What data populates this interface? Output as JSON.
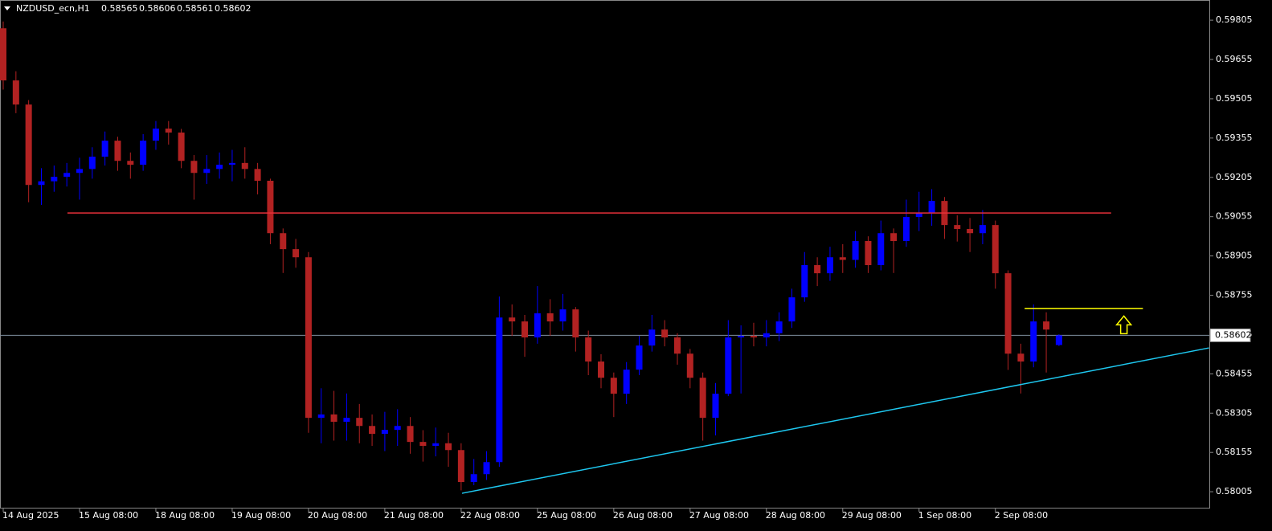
{
  "chart_data": {
    "type": "candlestick",
    "symbol": "NZDUSD_ecn,H1",
    "up_color": "#0000ff",
    "down_color": "#b22222",
    "categories": [
      "14 Aug 2025",
      null,
      null,
      null,
      null,
      null,
      "15 Aug 08:00",
      null,
      null,
      null,
      null,
      null,
      "18 Aug 08:00",
      null,
      null,
      null,
      null,
      null,
      "19 Aug 08:00",
      null,
      null,
      null,
      null,
      null,
      "20 Aug 08:00",
      null,
      null,
      null,
      null,
      null,
      "21 Aug 08:00",
      null,
      null,
      null,
      null,
      null,
      "22 Aug 08:00",
      null,
      null,
      null,
      null,
      null,
      "25 Aug 08:00",
      null,
      null,
      null,
      null,
      null,
      "26 Aug 08:00",
      null,
      null,
      null,
      null,
      null,
      "27 Aug 08:00",
      null,
      null,
      null,
      null,
      null,
      "28 Aug 08:00",
      null,
      null,
      null,
      null,
      null,
      "29 Aug 08:00",
      null,
      null,
      null,
      null,
      null,
      "1 Sep 08:00",
      null,
      null,
      null,
      null,
      null,
      "2 Sep 08:00",
      null,
      null,
      null,
      null,
      null
    ],
    "open": [
      0.59774,
      0.59575,
      0.59483,
      0.59176,
      0.5919,
      0.59207,
      0.59222,
      0.59237,
      0.59284,
      0.59345,
      0.59268,
      0.59253,
      0.59345,
      0.59391,
      0.59376,
      0.59268,
      0.59222,
      0.59237,
      0.59253,
      0.5926,
      0.59237,
      0.59192,
      0.58992,
      0.58931,
      0.589,
      0.58287,
      0.583,
      0.58272,
      0.58287,
      0.58256,
      0.58226,
      0.58241,
      0.58256,
      0.58195,
      0.5818,
      0.5819,
      0.58164,
      0.58042,
      0.58072,
      0.58118,
      0.5867,
      0.58655,
      0.58594,
      0.58686,
      0.58655,
      0.58701,
      0.58594,
      0.58502,
      0.5844,
      0.58379,
      0.58471,
      0.58563,
      0.58624,
      0.58594,
      0.58532,
      0.5844,
      0.58287,
      0.58379,
      0.58594,
      0.586,
      0.58594,
      0.5861,
      0.58655,
      0.58747,
      0.5887,
      0.58839,
      0.589,
      0.5889,
      0.58962,
      0.5887,
      0.58992,
      0.58962,
      0.59054,
      0.59069,
      0.59115,
      0.59023,
      0.59008,
      0.58992,
      0.59023,
      0.58839,
      0.58532,
      0.58502,
      0.58655,
      0.58565
    ],
    "high": [
      0.598,
      0.5961,
      0.595,
      0.5924,
      0.5925,
      0.5926,
      0.5928,
      0.5932,
      0.5938,
      0.5936,
      0.593,
      0.5937,
      0.5942,
      0.5942,
      0.5939,
      0.5929,
      0.5929,
      0.593,
      0.5931,
      0.5932,
      0.5926,
      0.592,
      0.5901,
      0.5897,
      0.5892,
      0.584,
      0.5839,
      0.5838,
      0.5834,
      0.583,
      0.5831,
      0.5832,
      0.5829,
      0.5824,
      0.5825,
      0.5823,
      0.5819,
      0.5813,
      0.5816,
      0.5875,
      0.5872,
      0.5868,
      0.5879,
      0.5874,
      0.5876,
      0.5871,
      0.5862,
      0.5853,
      0.5846,
      0.585,
      0.586,
      0.5868,
      0.5866,
      0.5861,
      0.5855,
      0.5846,
      0.5842,
      0.5866,
      0.5864,
      0.5865,
      0.5866,
      0.5869,
      0.5878,
      0.5892,
      0.589,
      0.5894,
      0.5895,
      0.59,
      0.5898,
      0.5904,
      0.5901,
      0.5912,
      0.5915,
      0.5916,
      0.5913,
      0.5906,
      0.5905,
      0.5908,
      0.5904,
      0.5885,
      0.5857,
      0.5872,
      0.5869,
      0.58606
    ],
    "low": [
      0.5954,
      0.5945,
      0.5911,
      0.591,
      0.5915,
      0.5917,
      0.5912,
      0.592,
      0.5925,
      0.5923,
      0.592,
      0.5923,
      0.5931,
      0.5933,
      0.5924,
      0.5912,
      0.5918,
      0.592,
      0.5919,
      0.592,
      0.5914,
      0.5895,
      0.5884,
      0.5886,
      0.5823,
      0.5819,
      0.582,
      0.582,
      0.5819,
      0.5818,
      0.5816,
      0.5818,
      0.5815,
      0.5812,
      0.5814,
      0.581,
      0.5801,
      0.5803,
      0.5805,
      0.581,
      0.586,
      0.5852,
      0.5857,
      0.586,
      0.5862,
      0.5854,
      0.5845,
      0.584,
      0.5829,
      0.5834,
      0.5845,
      0.5854,
      0.5856,
      0.5849,
      0.584,
      0.582,
      0.5822,
      0.5837,
      0.5838,
      0.5856,
      0.5856,
      0.5858,
      0.5863,
      0.5873,
      0.5879,
      0.5881,
      0.5884,
      0.5886,
      0.5884,
      0.5885,
      0.5884,
      0.5894,
      0.59,
      0.5902,
      0.5897,
      0.5896,
      0.5892,
      0.5895,
      0.5878,
      0.5847,
      0.5838,
      0.5848,
      0.5846,
      0.58561
    ],
    "close": [
      0.59575,
      0.59483,
      0.59176,
      0.5919,
      0.59207,
      0.59222,
      0.59237,
      0.59284,
      0.59345,
      0.59268,
      0.59253,
      0.59345,
      0.59391,
      0.59376,
      0.59268,
      0.59222,
      0.59237,
      0.59253,
      0.5926,
      0.59237,
      0.59192,
      0.58992,
      0.58931,
      0.589,
      0.58287,
      0.583,
      0.58272,
      0.58287,
      0.58256,
      0.58226,
      0.58241,
      0.58256,
      0.58195,
      0.5818,
      0.5819,
      0.58164,
      0.58042,
      0.58072,
      0.58118,
      0.5867,
      0.58655,
      0.58594,
      0.58686,
      0.58655,
      0.58701,
      0.58594,
      0.58502,
      0.5844,
      0.58379,
      0.58471,
      0.58563,
      0.58624,
      0.58594,
      0.58532,
      0.5844,
      0.58287,
      0.58379,
      0.58594,
      0.586,
      0.58594,
      0.5861,
      0.58655,
      0.58747,
      0.5887,
      0.58839,
      0.589,
      0.5889,
      0.58962,
      0.5887,
      0.58992,
      0.58962,
      0.59054,
      0.59069,
      0.59115,
      0.59023,
      0.59008,
      0.58992,
      0.59023,
      0.58839,
      0.58532,
      0.58502,
      0.58655,
      0.58624,
      0.58602
    ],
    "ylim": [
      0.57944,
      0.59882
    ],
    "yticks": [
      0.59805,
      0.59655,
      0.59505,
      0.59355,
      0.59205,
      0.59055,
      0.58905,
      0.58755,
      0.58605,
      0.58455,
      0.58305,
      0.58155,
      0.58005
    ],
    "price_line_color": "#8090a0",
    "lines": [
      {
        "color": "#e8303a",
        "x": [
          5.05,
          87.1
        ],
        "y": [
          0.59069,
          0.59069
        ]
      },
      {
        "color": "#ffff00",
        "x": [
          80.3,
          89.6
        ],
        "y": [
          0.58704,
          0.58704
        ]
      },
      {
        "color": "#1ec8f0",
        "x": [
          36.07,
          94.8
        ],
        "y": [
          0.57999,
          0.58554
        ]
      }
    ],
    "arrow": {
      "color": "#ffff00",
      "x": 88.1,
      "y": 0.58642
    }
  }
}
